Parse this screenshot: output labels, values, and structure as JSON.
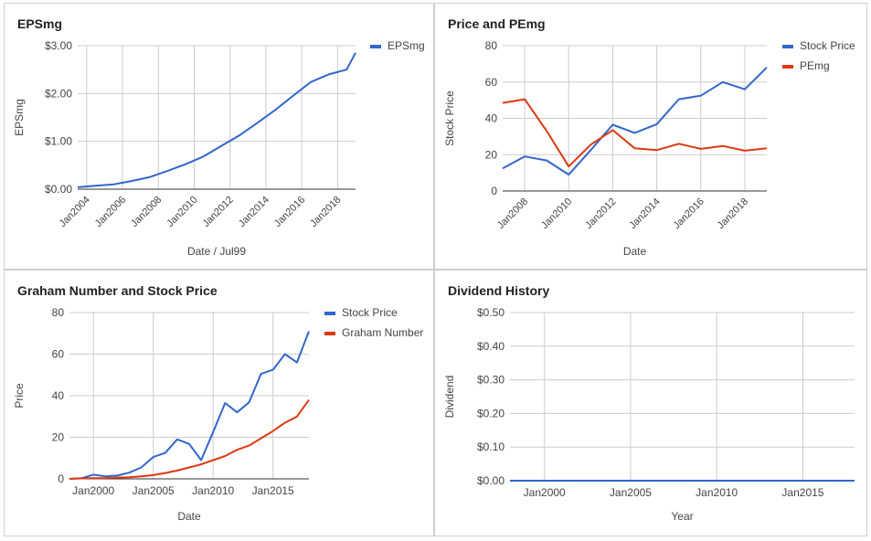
{
  "chart_data": [
    {
      "id": "eps",
      "type": "line",
      "title": "EPSmg",
      "xlabel": "Date / Jul99",
      "ylabel": "EPSmg",
      "x_tick_labels": [
        "Jan2004",
        "Jan2006",
        "Jan2008",
        "Jan2010",
        "Jan2012",
        "Jan2014",
        "Jan2016",
        "Jan2018"
      ],
      "x_tick_values": [
        2004,
        2006,
        2008,
        2010,
        2012,
        2014,
        2016,
        2018
      ],
      "xlim": [
        2003.5,
        2019.0
      ],
      "y_tick_labels": [
        "$0.00",
        "$1.00",
        "$2.00",
        "$3.00"
      ],
      "y_tick_values": [
        0,
        1,
        2,
        3
      ],
      "ylim": [
        0,
        3
      ],
      "legend_position": "right",
      "grid": true,
      "series": [
        {
          "name": "EPSmg",
          "color": "#3366cc",
          "x": [
            2003.5,
            2004.5,
            2005.5,
            2006.5,
            2007.5,
            2008.5,
            2009.5,
            2010.5,
            2011.5,
            2012.5,
            2013.5,
            2014.5,
            2015.5,
            2016.5,
            2017.5,
            2018.5,
            2019.0
          ],
          "y": [
            0.04,
            0.07,
            0.1,
            0.17,
            0.25,
            0.38,
            0.52,
            0.68,
            0.9,
            1.12,
            1.38,
            1.65,
            1.95,
            2.24,
            2.4,
            2.5,
            2.85
          ]
        }
      ]
    },
    {
      "id": "price_pe",
      "type": "line",
      "title": "Price and PEmg",
      "xlabel": "Date",
      "ylabel": "Stock Price",
      "x_tick_labels": [
        "Jan2008",
        "Jan2010",
        "Jan2012",
        "Jan2014",
        "Jan2016",
        "Jan2018"
      ],
      "x_tick_values": [
        2008,
        2010,
        2012,
        2014,
        2016,
        2018
      ],
      "xlim": [
        2007.0,
        2019.0
      ],
      "y_tick_labels": [
        "0",
        "20",
        "40",
        "60",
        "80"
      ],
      "y_tick_values": [
        0,
        20,
        40,
        60,
        80
      ],
      "ylim": [
        0,
        80
      ],
      "legend_position": "right",
      "grid": true,
      "series": [
        {
          "name": "Stock Price",
          "color": "#3366cc",
          "x": [
            2007.0,
            2008.0,
            2009.0,
            2010.0,
            2011.0,
            2012.0,
            2013.0,
            2014.0,
            2015.0,
            2016.0,
            2017.0,
            2018.0,
            2019.0
          ],
          "y": [
            12.5,
            19.0,
            16.8,
            9.0,
            22.5,
            36.5,
            32.0,
            36.8,
            50.5,
            52.5,
            60.0,
            56.0,
            68.0
          ]
        },
        {
          "name": "PEmg",
          "color": "#dc3912",
          "x": [
            2007.0,
            2008.0,
            2009.0,
            2010.0,
            2011.0,
            2012.0,
            2013.0,
            2014.0,
            2015.0,
            2016.0,
            2017.0,
            2018.0,
            2019.0
          ],
          "y": [
            48.5,
            50.5,
            33.0,
            13.5,
            25.5,
            33.5,
            23.5,
            22.5,
            26.0,
            23.2,
            24.8,
            22.2,
            23.5
          ]
        }
      ]
    },
    {
      "id": "graham",
      "type": "line",
      "title": "Graham Number and Stock Price",
      "xlabel": "Date",
      "ylabel": "Price",
      "x_tick_labels": [
        "Jan2000",
        "Jan2005",
        "Jan2010",
        "Jan2015"
      ],
      "x_tick_values": [
        2000,
        2005,
        2010,
        2015
      ],
      "xlim": [
        1998.0,
        2018.0
      ],
      "y_tick_labels": [
        "0",
        "20",
        "40",
        "60",
        "80"
      ],
      "y_tick_values": [
        0,
        20,
        40,
        60,
        80
      ],
      "ylim": [
        0,
        80
      ],
      "legend_position": "right",
      "grid": true,
      "series": [
        {
          "name": "Stock Price",
          "color": "#3366cc",
          "x": [
            1998.0,
            1999.0,
            2000.0,
            2001.0,
            2002.0,
            2003.0,
            2004.0,
            2005.0,
            2006.0,
            2007.0,
            2008.0,
            2009.0,
            2010.0,
            2011.0,
            2012.0,
            2013.0,
            2014.0,
            2015.0,
            2016.0,
            2017.0,
            2018.0
          ],
          "y": [
            0.0,
            0.3,
            2.0,
            1.2,
            1.6,
            3.0,
            5.5,
            10.5,
            12.5,
            19.0,
            16.8,
            9.0,
            22.5,
            36.5,
            32.0,
            36.8,
            50.5,
            52.5,
            60.0,
            56.0,
            71.0
          ]
        },
        {
          "name": "Graham Number",
          "color": "#dc3912",
          "x": [
            1998.0,
            1999.0,
            2000.0,
            2001.0,
            2002.0,
            2003.0,
            2004.0,
            2005.0,
            2006.0,
            2007.0,
            2008.0,
            2009.0,
            2010.0,
            2011.0,
            2012.0,
            2013.0,
            2014.0,
            2015.0,
            2016.0,
            2017.0,
            2018.0
          ],
          "y": [
            0.0,
            0.2,
            0.3,
            0.4,
            0.6,
            0.8,
            1.2,
            1.8,
            2.8,
            4.0,
            5.5,
            7.0,
            9.0,
            11.0,
            14.0,
            16.0,
            19.5,
            23.0,
            27.0,
            30.0,
            38.0
          ]
        }
      ]
    },
    {
      "id": "dividend",
      "type": "line",
      "title": "Dividend History",
      "xlabel": "Year",
      "ylabel": "Dividend",
      "x_tick_labels": [
        "Jan2000",
        "Jan2005",
        "Jan2010",
        "Jan2015"
      ],
      "x_tick_values": [
        2000,
        2005,
        2010,
        2015
      ],
      "xlim": [
        1998.0,
        2018.0
      ],
      "y_tick_labels": [
        "$0.00",
        "$0.10",
        "$0.20",
        "$0.30",
        "$0.40",
        "$0.50"
      ],
      "y_tick_values": [
        0,
        0.1,
        0.2,
        0.3,
        0.4,
        0.5
      ],
      "ylim": [
        0,
        0.5
      ],
      "legend_position": "none",
      "grid": true,
      "series": [
        {
          "name": "",
          "color": "#3366cc",
          "x": [
            1998.0,
            2018.0
          ],
          "y": [
            0,
            0
          ]
        }
      ]
    }
  ]
}
